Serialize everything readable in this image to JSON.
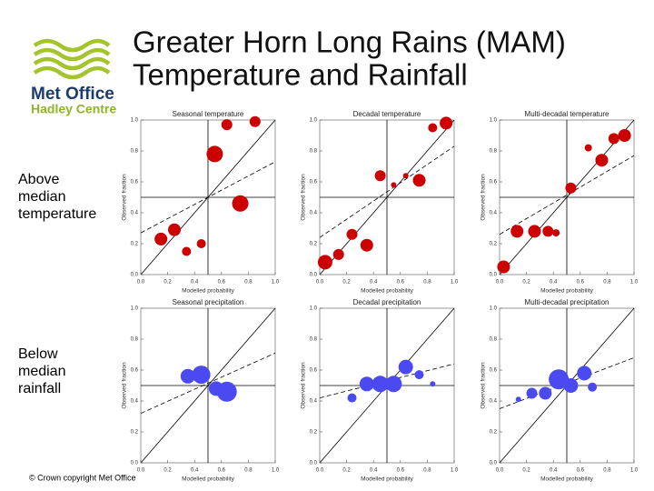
{
  "title": [
    "Greater Horn Long Rains (MAM)",
    "Temperature and Rainfall"
  ],
  "logo": {
    "name": "Met Office",
    "subname": "Hadley Centre"
  },
  "row_labels": [
    [
      "Above",
      "median",
      "temperature"
    ],
    [
      "Below",
      "median",
      "rainfall"
    ]
  ],
  "copyright": "© Crown copyright   Met Office",
  "chart_data": [
    {
      "type": "scatter",
      "title": "Seasonal temperature",
      "xlabel": "Modelled probability",
      "ylabel": "Observed fraction",
      "color": "#cc0000",
      "x": [
        0.64,
        0.85,
        0.55,
        0.74,
        0.25,
        0.15,
        0.34,
        0.45
      ],
      "y": [
        0.97,
        0.99,
        0.78,
        0.46,
        0.29,
        0.23,
        0.15,
        0.2
      ],
      "sizes": [
        6,
        6,
        9,
        9,
        7,
        7,
        5,
        5
      ],
      "fit_line": {
        "x": [
          0,
          1
        ],
        "y": [
          0.27,
          0.73
        ]
      },
      "xlim": [
        0,
        1
      ],
      "ylim": [
        0,
        1
      ],
      "xticks": [
        {
          "value": 0,
          "label": "0.0"
        },
        0.2,
        0.4,
        0.6,
        0.8,
        {
          "value": 1,
          "label": "1.0"
        }
      ],
      "yticks": [
        {
          "value": 0,
          "label": "0.0"
        },
        0.2,
        0.4,
        0.6,
        0.8,
        {
          "value": 1,
          "label": "1.0"
        }
      ]
    },
    {
      "type": "scatter",
      "title": "Decadal temperature",
      "xlabel": "Modelled probability",
      "ylabel": "Observed fraction",
      "color": "#cc0000",
      "x": [
        0.94,
        0.84,
        0.45,
        0.55,
        0.64,
        0.74,
        0.24,
        0.35,
        0.14,
        0.04
      ],
      "y": [
        0.98,
        0.95,
        0.64,
        0.58,
        0.64,
        0.61,
        0.26,
        0.19,
        0.13,
        0.08
      ],
      "sizes": [
        7,
        5,
        6,
        3,
        3,
        7,
        6,
        7,
        6,
        8
      ],
      "fit_line": {
        "x": [
          0,
          1
        ],
        "y": [
          0.24,
          0.83
        ]
      },
      "xlim": [
        0,
        1
      ],
      "ylim": [
        0,
        1
      ],
      "xticks": [
        {
          "value": 0,
          "label": "0.0"
        },
        0.2,
        0.4,
        0.6,
        0.8,
        {
          "value": 1,
          "label": "1.0"
        }
      ],
      "yticks": [
        {
          "value": 0,
          "label": "0.0"
        },
        0.2,
        0.4,
        0.6,
        0.8,
        {
          "value": 1,
          "label": "1.0"
        }
      ]
    },
    {
      "type": "scatter",
      "title": "Multi-decadal temperature",
      "xlabel": "Modelled probability",
      "ylabel": "Observed fraction",
      "color": "#cc0000",
      "x": [
        0.93,
        0.85,
        0.66,
        0.76,
        0.53,
        0.13,
        0.26,
        0.36,
        0.42,
        0.03
      ],
      "y": [
        0.9,
        0.88,
        0.82,
        0.74,
        0.56,
        0.28,
        0.28,
        0.28,
        0.27,
        0.05
      ],
      "sizes": [
        7,
        6,
        4,
        7,
        6,
        7,
        7,
        6,
        4,
        7
      ],
      "fit_line": {
        "x": [
          0,
          1
        ],
        "y": [
          0.26,
          0.77
        ]
      },
      "xlim": [
        0,
        1
      ],
      "ylim": [
        0,
        1
      ],
      "xticks": [
        {
          "value": 0,
          "label": "0.0"
        },
        0.2,
        0.4,
        0.6,
        0.8,
        {
          "value": 1,
          "label": "1.0"
        }
      ],
      "yticks": [
        {
          "value": 0,
          "label": "0.0"
        },
        0.2,
        0.4,
        0.6,
        0.8,
        {
          "value": 1,
          "label": "1.0"
        }
      ]
    },
    {
      "type": "scatter",
      "title": "Seasonal precipitation",
      "xlabel": "Modelled probability",
      "ylabel": "Observed fraction",
      "color": "#4a4af0",
      "x": [
        0.35,
        0.45,
        0.56,
        0.64
      ],
      "y": [
        0.56,
        0.57,
        0.48,
        0.46
      ],
      "sizes": [
        8,
        10,
        8,
        11
      ],
      "fit_line": {
        "x": [
          0,
          1
        ],
        "y": [
          0.32,
          0.71
        ]
      },
      "xlim": [
        0,
        1
      ],
      "ylim": [
        0,
        1
      ],
      "xticks": [
        {
          "value": 0,
          "label": "0.0"
        },
        0.2,
        0.4,
        0.6,
        0.8,
        {
          "value": 1,
          "label": "1.0"
        }
      ],
      "yticks": [
        {
          "value": 0,
          "label": "0.0"
        },
        0.2,
        0.4,
        0.6,
        0.8,
        {
          "value": 1,
          "label": "1.0"
        }
      ]
    },
    {
      "type": "scatter",
      "title": "Decadal precipitation",
      "xlabel": "Modelled probability",
      "ylabel": "Observed fraction",
      "color": "#4a4af0",
      "x": [
        0.24,
        0.35,
        0.45,
        0.55,
        0.64,
        0.74,
        0.84
      ],
      "y": [
        0.42,
        0.51,
        0.51,
        0.51,
        0.62,
        0.57,
        0.51
      ],
      "sizes": [
        5,
        8,
        9,
        9,
        8,
        5,
        3
      ],
      "fit_line": {
        "x": [
          0,
          1
        ],
        "y": [
          0.42,
          0.64
        ]
      },
      "xlim": [
        0,
        1
      ],
      "ylim": [
        0,
        1
      ],
      "xticks": [
        {
          "value": 0,
          "label": "0.0"
        },
        0.2,
        0.4,
        0.6,
        0.8,
        {
          "value": 1,
          "label": "1.0"
        }
      ],
      "yticks": [
        {
          "value": 0,
          "label": "0.0"
        },
        0.2,
        0.4,
        0.6,
        0.8,
        {
          "value": 1,
          "label": "1.0"
        }
      ]
    },
    {
      "type": "scatter",
      "title": "Multi-decadal precipitation",
      "xlabel": "Modelled probability",
      "ylabel": "Observed fraction",
      "color": "#4a4af0",
      "x": [
        0.14,
        0.24,
        0.34,
        0.44,
        0.53,
        0.63,
        0.69
      ],
      "y": [
        0.41,
        0.45,
        0.45,
        0.54,
        0.5,
        0.58,
        0.49
      ],
      "sizes": [
        3,
        6,
        7,
        11,
        8,
        8,
        5
      ],
      "fit_line": {
        "x": [
          0,
          1
        ],
        "y": [
          0.35,
          0.68
        ]
      },
      "xlim": [
        0,
        1
      ],
      "ylim": [
        0,
        1
      ],
      "xticks": [
        {
          "value": 0,
          "label": "0.0"
        },
        0.2,
        0.4,
        0.6,
        0.8,
        {
          "value": 1,
          "label": "1.0"
        }
      ],
      "yticks": [
        {
          "value": 0,
          "label": "0.0"
        },
        0.2,
        0.4,
        0.6,
        0.8,
        {
          "value": 1,
          "label": "1.0"
        }
      ]
    }
  ]
}
